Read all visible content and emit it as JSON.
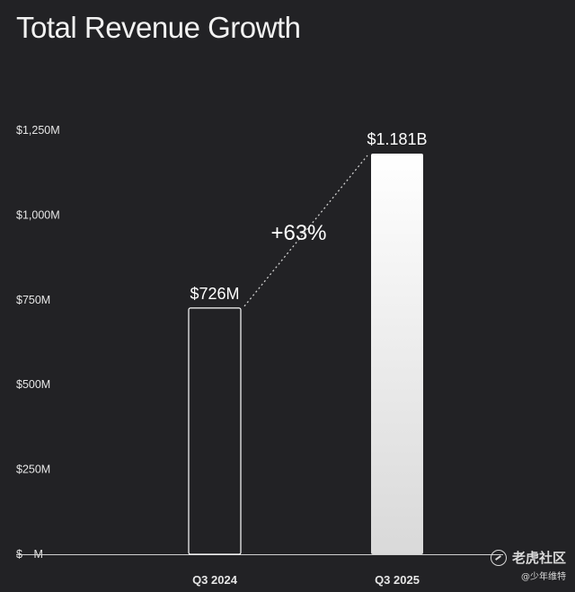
{
  "title": "Total Revenue Growth",
  "chart_data": {
    "type": "bar",
    "categories": [
      "Q3 2024",
      "Q3 2025"
    ],
    "values": [
      726,
      1181
    ],
    "value_labels": [
      "$726M",
      "$1.181B"
    ],
    "ylabel": "",
    "xlabel": "",
    "ylim": [
      0,
      1250
    ],
    "yticks": [
      0,
      250,
      500,
      750,
      1000,
      1250
    ],
    "ytick_labels": [
      "$—M",
      "$250M",
      "$500M",
      "$750M",
      "$1,000M",
      "$1,250M"
    ],
    "growth_annotation": "+63%",
    "grid": false,
    "bar_styles": [
      "outline",
      "gradient-fill"
    ],
    "colors": {
      "background": "#222225",
      "bar_outline": "#ffffff",
      "bar_fill_top": "#ffffff",
      "bar_fill_bottom": "#d9d9d9",
      "text": "#ffffff"
    }
  },
  "watermark": {
    "brand": "老虎社区",
    "user": "@少年维特",
    "icon": "tiger-logo-icon"
  }
}
